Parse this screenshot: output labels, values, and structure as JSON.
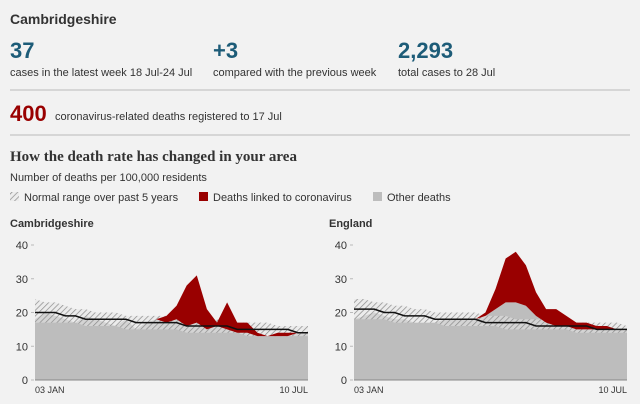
{
  "header": {
    "title": "Cambridgeshire",
    "stats": [
      {
        "value": "37",
        "label": "cases in the latest week 18 Jul-24 Jul"
      },
      {
        "value": "+3",
        "label": "compared with the previous week"
      },
      {
        "value": "2,293",
        "label": "total cases to 28 Jul"
      }
    ],
    "deaths": {
      "value": "400",
      "label": "coronavirus-related deaths registered to 17 Jul"
    }
  },
  "section": {
    "title": "How the death rate has changed in your area",
    "subtitle": "Number of deaths per 100,000 residents"
  },
  "chart_data": [
    {
      "type": "area",
      "title": "Cambridgeshire",
      "categories": [
        "03 JAN",
        null,
        null,
        null,
        null,
        null,
        null,
        null,
        null,
        null,
        null,
        null,
        null,
        null,
        null,
        null,
        null,
        null,
        null,
        null,
        null,
        null,
        null,
        null,
        null,
        null,
        null,
        "10 JUL"
      ],
      "series": [
        {
          "name": "Other deaths",
          "color": "#bdbdbd",
          "values": [
            18,
            20,
            19,
            18,
            17,
            19,
            18,
            17,
            16,
            18,
            15,
            17,
            18,
            17,
            18,
            16,
            17,
            15,
            16,
            15,
            14,
            14,
            13,
            13,
            13,
            13,
            14,
            14
          ]
        },
        {
          "name": "Deaths linked to coronavirus",
          "color": "#990000",
          "values": [
            0,
            0,
            0,
            0,
            0,
            0,
            0,
            0,
            0,
            0,
            0,
            0,
            0,
            2,
            4,
            12,
            14,
            6,
            1,
            8,
            3,
            3,
            1,
            0,
            1,
            1,
            0,
            0
          ]
        }
      ],
      "range": {
        "name": "Normal range over past 5 years",
        "low": [
          17,
          17,
          17,
          17,
          17,
          16,
          16,
          16,
          16,
          15,
          15,
          15,
          15,
          15,
          15,
          14,
          14,
          14,
          14,
          14,
          14,
          13,
          13,
          13,
          13,
          13,
          13,
          13
        ],
        "high": [
          24,
          23,
          23,
          22,
          21,
          21,
          20,
          20,
          20,
          19,
          19,
          19,
          19,
          19,
          19,
          18,
          18,
          18,
          18,
          17,
          17,
          17,
          17,
          17,
          16,
          16,
          16,
          16
        ]
      },
      "average": [
        20,
        20,
        20,
        19,
        19,
        18,
        18,
        18,
        18,
        18,
        17,
        17,
        17,
        17,
        17,
        16,
        16,
        16,
        16,
        16,
        15,
        15,
        15,
        15,
        15,
        15,
        14,
        14
      ],
      "ylim": [
        0,
        40
      ],
      "yticks": [
        0,
        10,
        20,
        30,
        40
      ]
    },
    {
      "type": "area",
      "title": "England",
      "categories": [
        "03 JAN",
        null,
        null,
        null,
        null,
        null,
        null,
        null,
        null,
        null,
        null,
        null,
        null,
        null,
        null,
        null,
        null,
        null,
        null,
        null,
        null,
        null,
        null,
        null,
        null,
        null,
        null,
        "10 JUL"
      ],
      "series": [
        {
          "name": "Other deaths",
          "color": "#bdbdbd",
          "values": [
            18,
            19,
            20,
            19,
            18,
            18,
            17,
            17,
            17,
            18,
            18,
            18,
            18,
            19,
            21,
            23,
            23,
            22,
            19,
            17,
            16,
            16,
            15,
            15,
            15,
            15,
            15,
            15
          ]
        },
        {
          "name": "Deaths linked to coronavirus",
          "color": "#990000",
          "values": [
            0,
            0,
            0,
            0,
            0,
            0,
            0,
            0,
            0,
            0,
            0,
            0,
            0,
            1,
            6,
            13,
            15,
            12,
            7,
            4,
            5,
            3,
            2,
            2,
            1,
            1,
            0,
            0
          ]
        }
      ],
      "range": {
        "name": "Normal range over past 5 years",
        "low": [
          18,
          18,
          18,
          18,
          17,
          17,
          17,
          17,
          17,
          16,
          16,
          16,
          16,
          16,
          16,
          15,
          15,
          15,
          15,
          15,
          15,
          15,
          14,
          14,
          14,
          14,
          14,
          14
        ],
        "high": [
          24,
          24,
          23,
          23,
          22,
          22,
          21,
          21,
          20,
          20,
          20,
          20,
          20,
          19,
          19,
          19,
          18,
          18,
          18,
          18,
          18,
          17,
          17,
          17,
          17,
          17,
          17,
          16
        ]
      },
      "average": [
        21,
        21,
        21,
        20,
        20,
        19,
        19,
        19,
        18,
        18,
        18,
        18,
        18,
        17,
        17,
        17,
        17,
        17,
        16,
        16,
        16,
        16,
        16,
        16,
        15,
        15,
        15,
        15
      ],
      "ylim": [
        0,
        40
      ],
      "yticks": [
        0,
        10,
        20,
        30,
        40
      ]
    }
  ]
}
